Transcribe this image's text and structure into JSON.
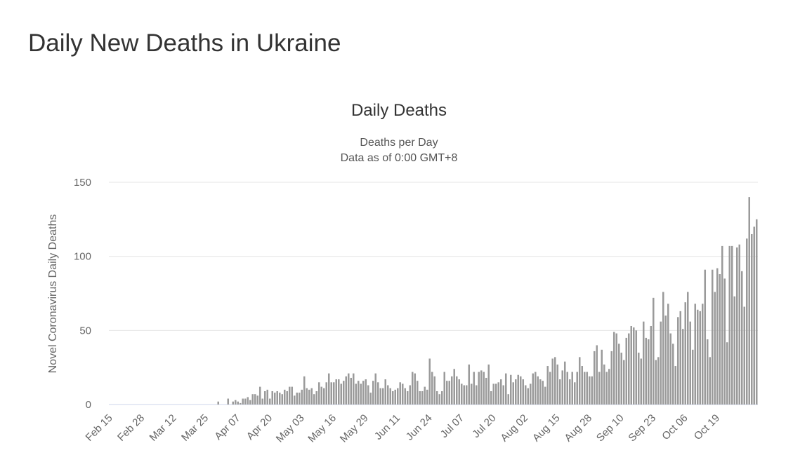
{
  "page": {
    "title": "Daily New Deaths in Ukraine"
  },
  "chart_data": {
    "type": "bar",
    "title": "Daily Deaths",
    "subtitle": [
      "Deaths per Day",
      "Data as of 0:00 GMT+8"
    ],
    "ylabel": "Novel Coronavirus Daily Deaths",
    "xlabel": "",
    "ylim": [
      0,
      150
    ],
    "yticks": [
      0,
      50,
      100,
      150
    ],
    "grid": true,
    "legend": "none",
    "colors": {
      "bar": "#9a9a9a",
      "grid": "#e6e6e6"
    },
    "x_start": "Feb 15",
    "xtick_labels": [
      "Feb 15",
      "Feb 28",
      "Mar 12",
      "Mar 25",
      "Apr 07",
      "Apr 20",
      "May 03",
      "May 16",
      "May 29",
      "Jun 11",
      "Jun 24",
      "Jul 07",
      "Jul 20",
      "Aug 02",
      "Aug 15",
      "Aug 28",
      "Sep 10",
      "Sep 23",
      "Oct 06",
      "Oct 19"
    ],
    "values": [
      0,
      0,
      0,
      0,
      0,
      0,
      0,
      0,
      0,
      0,
      0,
      0,
      0,
      0,
      0,
      0,
      0,
      0,
      0,
      0,
      0,
      0,
      0,
      0,
      0,
      0,
      0,
      0,
      0,
      0,
      0,
      0,
      0,
      0,
      0,
      0,
      0,
      0,
      0,
      0,
      0,
      0,
      0,
      0,
      2,
      0,
      0,
      0,
      4,
      0,
      2,
      3,
      2,
      1,
      4,
      4,
      5,
      3,
      7,
      7,
      6,
      12,
      4,
      9,
      10,
      4,
      9,
      8,
      9,
      8,
      7,
      10,
      9,
      12,
      12,
      6,
      8,
      8,
      10,
      19,
      11,
      10,
      11,
      7,
      9,
      15,
      12,
      11,
      15,
      21,
      15,
      15,
      17,
      17,
      14,
      16,
      19,
      21,
      18,
      21,
      14,
      16,
      14,
      16,
      17,
      13,
      8,
      16,
      21,
      15,
      11,
      11,
      17,
      13,
      11,
      9,
      10,
      11,
      15,
      14,
      11,
      9,
      13,
      22,
      21,
      16,
      9,
      9,
      12,
      10,
      31,
      22,
      19,
      9,
      7,
      9,
      22,
      16,
      16,
      19,
      24,
      19,
      17,
      14,
      13,
      13,
      27,
      14,
      22,
      13,
      22,
      23,
      22,
      18,
      27,
      9,
      14,
      14,
      15,
      17,
      13,
      21,
      7,
      20,
      15,
      17,
      20,
      19,
      17,
      13,
      11,
      14,
      21,
      22,
      19,
      17,
      16,
      12,
      26,
      22,
      31,
      32,
      27,
      17,
      23,
      29,
      22,
      17,
      22,
      15,
      22,
      32,
      26,
      22,
      22,
      19,
      19,
      36,
      40,
      22,
      37,
      27,
      22,
      24,
      36,
      49,
      48,
      41,
      35,
      30,
      45,
      48,
      53,
      52,
      50,
      35,
      31,
      56,
      45,
      44,
      53,
      72,
      30,
      32,
      56,
      76,
      60,
      68,
      48,
      41,
      26,
      59,
      63,
      51,
      69,
      76,
      56,
      37,
      68,
      64,
      63,
      68,
      91,
      44,
      32,
      91,
      76,
      92,
      88,
      107,
      85,
      42,
      107,
      107,
      73,
      106,
      108,
      90,
      66,
      112,
      140,
      115,
      120,
      125
    ]
  }
}
